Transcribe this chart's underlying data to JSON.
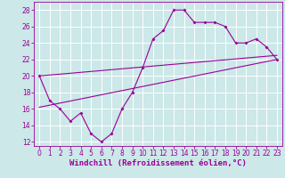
{
  "x": [
    0,
    1,
    2,
    3,
    4,
    5,
    6,
    7,
    8,
    9,
    10,
    11,
    12,
    13,
    14,
    15,
    16,
    17,
    18,
    19,
    20,
    21,
    22,
    23
  ],
  "y": [
    20,
    17,
    16,
    14.5,
    15.5,
    13,
    12,
    13,
    16,
    18,
    21,
    24.5,
    25.5,
    28,
    28,
    26.5,
    26.5,
    26.5,
    26,
    24,
    24,
    24.5,
    23.5,
    22
  ],
  "line_color": "#990099",
  "bg_color": "#cce8e8",
  "grid_color": "#aad4d4",
  "xlabel": "Windchill (Refroidissement éolien,°C)",
  "xlabel_fontsize": 6.5,
  "tick_fontsize": 5.5,
  "xlim": [
    -0.5,
    23.5
  ],
  "ylim": [
    11.5,
    29
  ],
  "yticks": [
    12,
    14,
    16,
    18,
    20,
    22,
    24,
    26,
    28
  ],
  "xticks": [
    0,
    1,
    2,
    3,
    4,
    5,
    6,
    7,
    8,
    9,
    10,
    11,
    12,
    13,
    14,
    15,
    16,
    17,
    18,
    19,
    20,
    21,
    22,
    23
  ],
  "reg_line1": {
    "x": [
      0,
      23
    ],
    "y": [
      20.0,
      22.5
    ]
  },
  "reg_line2": {
    "x": [
      0,
      23
    ],
    "y": [
      16.2,
      22.0
    ]
  }
}
